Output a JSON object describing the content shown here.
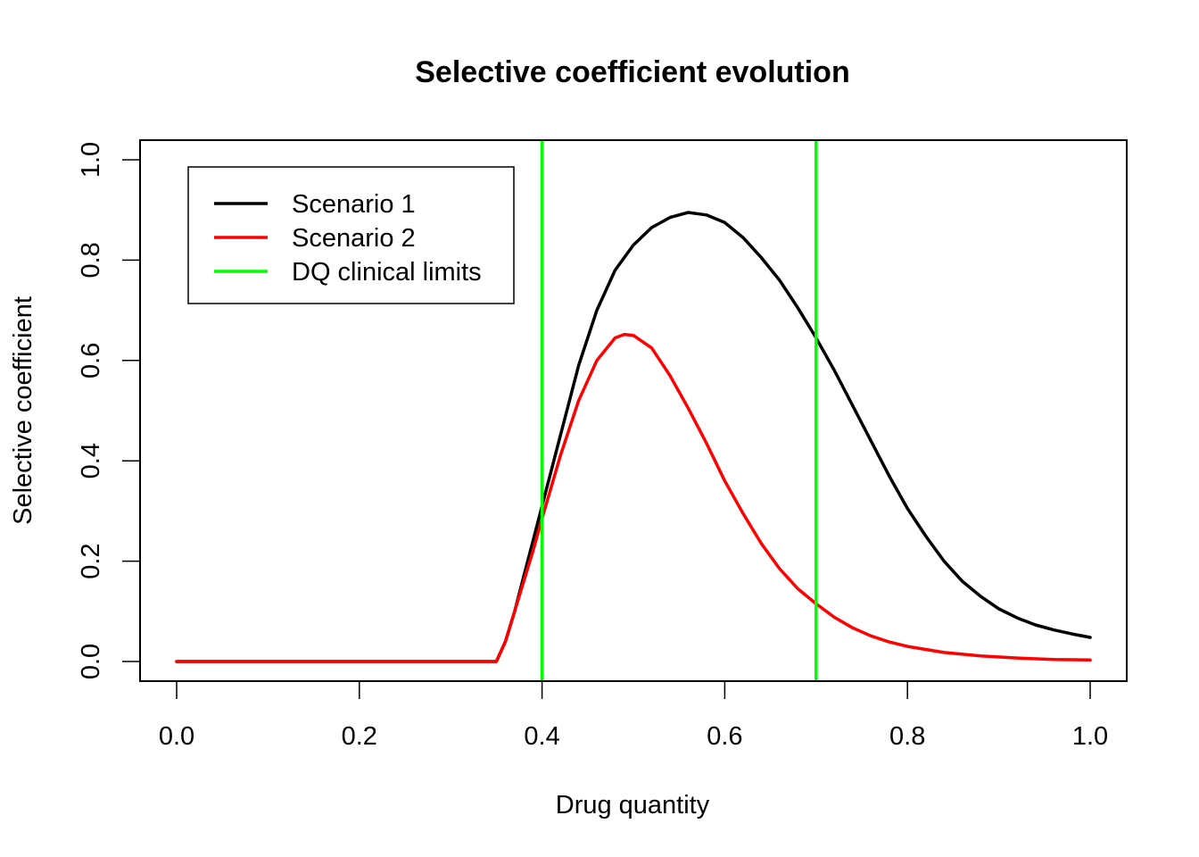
{
  "chart_data": {
    "type": "line",
    "title": "Selective coefficient evolution",
    "xlabel": "Drug quantity",
    "ylabel": "Selective coefficient",
    "xlim": [
      0.0,
      1.0
    ],
    "ylim": [
      0.0,
      1.0
    ],
    "x_ticks": [
      "0.0",
      "0.2",
      "0.4",
      "0.6",
      "0.8",
      "1.0"
    ],
    "y_ticks": [
      "0.0",
      "0.2",
      "0.4",
      "0.6",
      "0.8",
      "1.0"
    ],
    "grid": false,
    "legend_position": "top-left",
    "series": [
      {
        "name": "Scenario 1",
        "color": "#000000",
        "points": [
          [
            0.0,
            0.0
          ],
          [
            0.1,
            0.0
          ],
          [
            0.2,
            0.0
          ],
          [
            0.3,
            0.0
          ],
          [
            0.35,
            0.0
          ],
          [
            0.36,
            0.04
          ],
          [
            0.37,
            0.1
          ],
          [
            0.38,
            0.17
          ],
          [
            0.39,
            0.24
          ],
          [
            0.4,
            0.31
          ],
          [
            0.42,
            0.45
          ],
          [
            0.44,
            0.59
          ],
          [
            0.46,
            0.7
          ],
          [
            0.48,
            0.78
          ],
          [
            0.5,
            0.83
          ],
          [
            0.52,
            0.865
          ],
          [
            0.54,
            0.885
          ],
          [
            0.56,
            0.895
          ],
          [
            0.58,
            0.89
          ],
          [
            0.6,
            0.875
          ],
          [
            0.62,
            0.845
          ],
          [
            0.64,
            0.805
          ],
          [
            0.66,
            0.76
          ],
          [
            0.68,
            0.705
          ],
          [
            0.7,
            0.645
          ],
          [
            0.72,
            0.58
          ],
          [
            0.74,
            0.51
          ],
          [
            0.76,
            0.44
          ],
          [
            0.78,
            0.37
          ],
          [
            0.8,
            0.305
          ],
          [
            0.82,
            0.25
          ],
          [
            0.84,
            0.2
          ],
          [
            0.86,
            0.16
          ],
          [
            0.88,
            0.13
          ],
          [
            0.9,
            0.105
          ],
          [
            0.92,
            0.087
          ],
          [
            0.94,
            0.073
          ],
          [
            0.96,
            0.063
          ],
          [
            0.98,
            0.055
          ],
          [
            1.0,
            0.048
          ]
        ]
      },
      {
        "name": "Scenario 2",
        "color": "#ff0000",
        "points": [
          [
            0.0,
            0.0
          ],
          [
            0.1,
            0.0
          ],
          [
            0.2,
            0.0
          ],
          [
            0.3,
            0.0
          ],
          [
            0.35,
            0.0
          ],
          [
            0.36,
            0.04
          ],
          [
            0.37,
            0.1
          ],
          [
            0.38,
            0.16
          ],
          [
            0.39,
            0.22
          ],
          [
            0.4,
            0.285
          ],
          [
            0.42,
            0.41
          ],
          [
            0.44,
            0.52
          ],
          [
            0.46,
            0.6
          ],
          [
            0.48,
            0.645
          ],
          [
            0.49,
            0.652
          ],
          [
            0.5,
            0.65
          ],
          [
            0.52,
            0.625
          ],
          [
            0.54,
            0.57
          ],
          [
            0.56,
            0.505
          ],
          [
            0.58,
            0.435
          ],
          [
            0.6,
            0.36
          ],
          [
            0.62,
            0.295
          ],
          [
            0.64,
            0.235
          ],
          [
            0.66,
            0.185
          ],
          [
            0.68,
            0.145
          ],
          [
            0.7,
            0.115
          ],
          [
            0.72,
            0.088
          ],
          [
            0.74,
            0.067
          ],
          [
            0.76,
            0.051
          ],
          [
            0.78,
            0.039
          ],
          [
            0.8,
            0.03
          ],
          [
            0.84,
            0.018
          ],
          [
            0.88,
            0.011
          ],
          [
            0.92,
            0.007
          ],
          [
            0.96,
            0.004
          ],
          [
            1.0,
            0.003
          ]
        ]
      }
    ],
    "vertical_lines": {
      "name": "DQ clinical limits",
      "color": "#00ff00",
      "x": [
        0.4,
        0.7
      ]
    }
  }
}
